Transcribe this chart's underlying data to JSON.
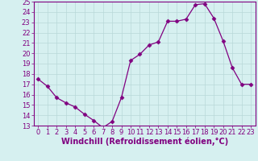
{
  "hours": [
    0,
    1,
    2,
    3,
    4,
    5,
    6,
    7,
    8,
    9,
    10,
    11,
    12,
    13,
    14,
    15,
    16,
    17,
    18,
    19,
    20,
    21,
    22,
    23
  ],
  "values": [
    17.5,
    16.8,
    15.7,
    15.2,
    14.8,
    14.1,
    13.5,
    12.8,
    13.4,
    15.7,
    19.3,
    19.9,
    20.8,
    21.1,
    23.1,
    23.1,
    23.3,
    24.7,
    24.8,
    23.4,
    21.2,
    18.6,
    17.0,
    17.0
  ],
  "line_color": "#800080",
  "marker": "D",
  "marker_size": 2.5,
  "bg_color": "#d6f0f0",
  "grid_color": "#b8d8d8",
  "xlabel": "Windchill (Refroidissement éolien,°C)",
  "ylim": [
    13,
    25
  ],
  "xlim": [
    -0.5,
    23.5
  ],
  "yticks": [
    13,
    14,
    15,
    16,
    17,
    18,
    19,
    20,
    21,
    22,
    23,
    24,
    25
  ],
  "xticks": [
    0,
    1,
    2,
    3,
    4,
    5,
    6,
    7,
    8,
    9,
    10,
    11,
    12,
    13,
    14,
    15,
    16,
    17,
    18,
    19,
    20,
    21,
    22,
    23
  ],
  "tick_fontsize": 6,
  "xlabel_fontsize": 7,
  "label_color": "#800080",
  "spine_color": "#800080",
  "fig_width": 3.2,
  "fig_height": 2.0,
  "dpi": 100
}
